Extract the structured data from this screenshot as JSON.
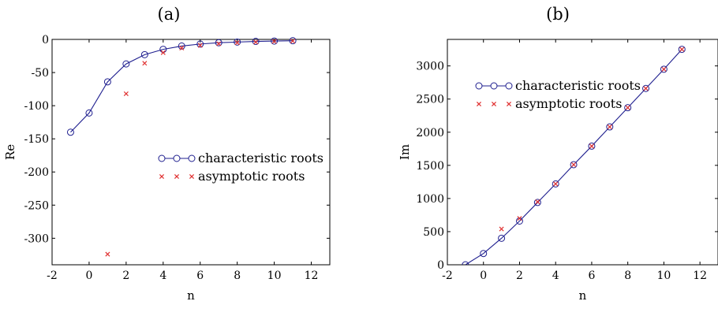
{
  "chart_data": [
    {
      "type": "line",
      "panel_label": "(a)",
      "xlabel": "n",
      "ylabel": "Re",
      "xlim": [
        -2,
        13
      ],
      "ylim": [
        -340,
        0
      ],
      "xticks": [
        -2,
        0,
        2,
        4,
        6,
        8,
        10,
        12
      ],
      "yticks": [
        0,
        -50,
        -100,
        -150,
        -200,
        -250,
        -300
      ],
      "series": [
        {
          "name": "characteristic roots",
          "style": "line-circle",
          "color": "#1f1f8f",
          "x": [
            -1,
            0,
            1,
            2,
            3,
            4,
            5,
            6,
            7,
            8,
            9,
            10,
            11
          ],
          "y": [
            -140,
            -111,
            -64,
            -37,
            -23,
            -15,
            -10,
            -7,
            -5,
            -4,
            -3,
            -2.5,
            -2
          ]
        },
        {
          "name": "asymptotic roots",
          "style": "cross",
          "color": "#e03030",
          "x": [
            1,
            2,
            3,
            4,
            5,
            6,
            7,
            8,
            9,
            10,
            11
          ],
          "y": [
            -324,
            -82,
            -36,
            -20,
            -13,
            -9,
            -6.5,
            -5,
            -4,
            -3,
            -2.5
          ]
        }
      ],
      "legend_position": "center-right"
    },
    {
      "type": "line",
      "panel_label": "(b)",
      "xlabel": "n",
      "ylabel": "Im",
      "xlim": [
        -2,
        13
      ],
      "ylim": [
        0,
        3400
      ],
      "xticks": [
        -2,
        0,
        2,
        4,
        6,
        8,
        10,
        12
      ],
      "yticks": [
        0,
        500,
        1000,
        1500,
        2000,
        2500,
        3000
      ],
      "series": [
        {
          "name": "characteristic roots",
          "style": "line-circle",
          "color": "#1f1f8f",
          "x": [
            -1,
            0,
            1,
            2,
            3,
            4,
            5,
            6,
            7,
            8,
            9,
            10,
            11
          ],
          "y": [
            0,
            170,
            400,
            660,
            940,
            1220,
            1510,
            1790,
            2080,
            2370,
            2660,
            2950,
            3250
          ]
        },
        {
          "name": "asymptotic roots",
          "style": "cross",
          "color": "#e03030",
          "x": [
            1,
            2,
            3,
            4,
            5,
            6,
            7,
            8,
            9,
            10,
            11
          ],
          "y": [
            540,
            700,
            950,
            1220,
            1510,
            1790,
            2080,
            2370,
            2660,
            2950,
            3250
          ]
        }
      ],
      "legend_position": "upper-left"
    }
  ]
}
